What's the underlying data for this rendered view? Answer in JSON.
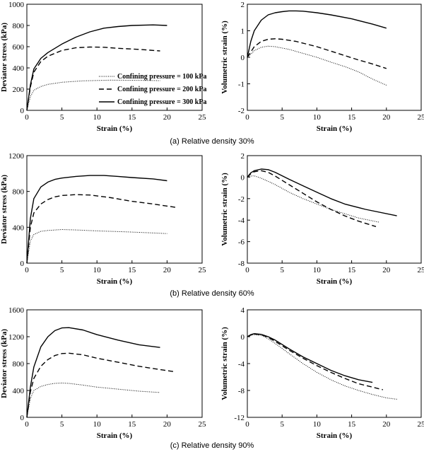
{
  "legend_labels": [
    "Confining pressure = 100 kPa",
    "Confining pressure = 200 kPa",
    "Confining pressure = 300 kPa"
  ],
  "captions": [
    "(a)  Relative density 30%",
    "(b)  Relative density 60%",
    "(c)  Relative density 90%"
  ],
  "chart_data": [
    {
      "type": "line",
      "panel": "a-left",
      "xlabel": "Strain (%)",
      "ylabel": "Deviator stress (kPa)",
      "xlim": [
        0,
        25
      ],
      "ylim": [
        0,
        1000
      ],
      "xticks": [
        0,
        5,
        10,
        15,
        20,
        25
      ],
      "yticks": [
        0,
        200,
        400,
        600,
        800,
        1000
      ],
      "series": [
        {
          "name": "Confining pressure = 100 kPa",
          "style": "dotted",
          "x": [
            0,
            0.5,
            1,
            2,
            3,
            5,
            8,
            12,
            16,
            19
          ],
          "y": [
            0,
            130,
            190,
            225,
            245,
            265,
            278,
            285,
            283,
            280
          ]
        },
        {
          "name": "Confining pressure = 200 kPa",
          "style": "dashed",
          "x": [
            0,
            0.5,
            1,
            2,
            3,
            5,
            7,
            9,
            11,
            13,
            16,
            19
          ],
          "y": [
            0,
            220,
            360,
            460,
            510,
            565,
            590,
            597,
            595,
            585,
            575,
            560
          ]
        },
        {
          "name": "Confining pressure = 300 kPa",
          "style": "solid",
          "x": [
            0,
            0.5,
            1,
            2,
            3,
            5,
            7,
            9,
            11,
            13,
            15,
            18,
            20
          ],
          "y": [
            0,
            240,
            390,
            490,
            545,
            625,
            690,
            740,
            775,
            790,
            800,
            805,
            800
          ]
        }
      ]
    },
    {
      "type": "line",
      "panel": "a-right",
      "xlabel": "Strain (%)",
      "ylabel": "Volumetric strain (%)",
      "xlim": [
        0,
        25
      ],
      "ylim": [
        -2,
        2
      ],
      "xticks": [
        0,
        5,
        10,
        15,
        20,
        25
      ],
      "yticks": [
        -2,
        -1,
        0,
        1,
        2
      ],
      "series": [
        {
          "name": "Confining pressure = 100 kPa",
          "style": "dotted",
          "x": [
            0,
            0.5,
            1,
            2,
            3,
            4,
            6,
            8,
            10,
            12,
            14,
            16,
            18,
            20
          ],
          "y": [
            0,
            0.12,
            0.25,
            0.38,
            0.42,
            0.4,
            0.3,
            0.15,
            0,
            -0.18,
            -0.35,
            -0.55,
            -0.82,
            -1.05
          ]
        },
        {
          "name": "Confining pressure = 200 kPa",
          "style": "dashed",
          "x": [
            0,
            0.5,
            1,
            2,
            3,
            4,
            5,
            7,
            10,
            13,
            16,
            18,
            20
          ],
          "y": [
            0,
            0.2,
            0.4,
            0.6,
            0.68,
            0.7,
            0.68,
            0.6,
            0.4,
            0.15,
            -0.1,
            -0.25,
            -0.42
          ]
        },
        {
          "name": "Confining pressure = 300 kPa",
          "style": "solid",
          "x": [
            0,
            0.5,
            1,
            2,
            3,
            4,
            5,
            6,
            7,
            8,
            10,
            12,
            15,
            18,
            20
          ],
          "y": [
            0,
            0.6,
            1.0,
            1.4,
            1.6,
            1.68,
            1.72,
            1.75,
            1.75,
            1.74,
            1.68,
            1.6,
            1.45,
            1.25,
            1.1
          ]
        }
      ]
    },
    {
      "type": "line",
      "panel": "b-left",
      "xlabel": "Strain (%)",
      "ylabel": "Deviator stress (kPa)",
      "xlim": [
        0,
        25
      ],
      "ylim": [
        0,
        1200
      ],
      "xticks": [
        0,
        5,
        10,
        15,
        20,
        25
      ],
      "yticks": [
        0,
        400,
        800,
        1200
      ],
      "series": [
        {
          "name": "Confining pressure = 100 kPa",
          "style": "dotted",
          "x": [
            0,
            0.5,
            1,
            2,
            3,
            5,
            7,
            10,
            14,
            17,
            20
          ],
          "y": [
            0,
            250,
            320,
            355,
            365,
            375,
            370,
            360,
            350,
            340,
            330
          ]
        },
        {
          "name": "Confining pressure = 200 kPa",
          "style": "dashed",
          "x": [
            0,
            0.5,
            1,
            2,
            3,
            4,
            5,
            7,
            9,
            12,
            15,
            18,
            21.5
          ],
          "y": [
            0,
            400,
            560,
            660,
            710,
            740,
            755,
            765,
            760,
            730,
            690,
            660,
            620
          ]
        },
        {
          "name": "Confining pressure = 300 kPa",
          "style": "solid",
          "x": [
            0,
            0.5,
            1,
            2,
            3,
            4,
            5,
            7,
            9,
            11,
            13,
            15,
            18,
            20
          ],
          "y": [
            0,
            500,
            720,
            850,
            905,
            935,
            950,
            968,
            978,
            978,
            968,
            955,
            940,
            920
          ]
        }
      ]
    },
    {
      "type": "line",
      "panel": "b-right",
      "xlabel": "Strain (%)",
      "ylabel": "Volumetric strain (%)",
      "xlim": [
        0,
        25
      ],
      "ylim": [
        -8,
        2
      ],
      "xticks": [
        0,
        5,
        10,
        15,
        20,
        25
      ],
      "yticks": [
        -8,
        -6,
        -4,
        -2,
        0,
        2
      ],
      "series": [
        {
          "name": "Confining pressure = 100 kPa",
          "style": "dotted",
          "x": [
            0,
            0.5,
            1,
            2,
            4,
            6,
            8,
            10,
            12,
            14,
            16,
            19
          ],
          "y": [
            0,
            0.1,
            0.12,
            -0.1,
            -0.7,
            -1.4,
            -2.0,
            -2.5,
            -3.0,
            -3.4,
            -3.8,
            -4.2
          ]
        },
        {
          "name": "Confining pressure = 200 kPa",
          "style": "dashed",
          "x": [
            0,
            0.5,
            1,
            2,
            3,
            4,
            6,
            8,
            10,
            12,
            14,
            16,
            18.5
          ],
          "y": [
            0,
            0.3,
            0.5,
            0.6,
            0.45,
            0.1,
            -0.7,
            -1.5,
            -2.3,
            -3.0,
            -3.6,
            -4.1,
            -4.6
          ]
        },
        {
          "name": "Confining pressure = 300 kPa",
          "style": "solid",
          "x": [
            0,
            0.5,
            1,
            2,
            3,
            4,
            6,
            8,
            10,
            12,
            14,
            17,
            21.5
          ],
          "y": [
            0,
            0.4,
            0.6,
            0.75,
            0.7,
            0.45,
            -0.2,
            -0.8,
            -1.4,
            -2.0,
            -2.5,
            -3.0,
            -3.6
          ]
        }
      ]
    },
    {
      "type": "line",
      "panel": "c-left",
      "xlabel": "Strain (%)",
      "ylabel": "Deviator stress (kPa)",
      "xlim": [
        0,
        25
      ],
      "ylim": [
        0,
        1600
      ],
      "xticks": [
        0,
        5,
        10,
        15,
        20,
        25
      ],
      "yticks": [
        0,
        400,
        800,
        1200,
        1600
      ],
      "series": [
        {
          "name": "Confining pressure = 100 kPa",
          "style": "dotted",
          "x": [
            0,
            0.5,
            1,
            2,
            3,
            4,
            5,
            6,
            8,
            10,
            13,
            16,
            19
          ],
          "y": [
            0,
            280,
            400,
            460,
            490,
            505,
            510,
            505,
            480,
            450,
            420,
            390,
            370
          ]
        },
        {
          "name": "Confining pressure = 200 kPa",
          "style": "dashed",
          "x": [
            0,
            0.5,
            1,
            2,
            3,
            4,
            5,
            6,
            8,
            10,
            13,
            16,
            19,
            21
          ],
          "y": [
            0,
            380,
            580,
            760,
            860,
            920,
            950,
            955,
            930,
            880,
            820,
            760,
            710,
            680
          ]
        },
        {
          "name": "Confining pressure = 300 kPa",
          "style": "solid",
          "x": [
            0,
            0.5,
            1,
            2,
            3,
            4,
            5,
            6,
            8,
            10,
            13,
            16,
            19
          ],
          "y": [
            0,
            450,
            750,
            1050,
            1200,
            1290,
            1330,
            1335,
            1300,
            1230,
            1150,
            1080,
            1040
          ]
        }
      ]
    },
    {
      "type": "line",
      "panel": "c-right",
      "xlabel": "Strain (%)",
      "ylabel": "Volumetric strain (%)",
      "xlim": [
        0,
        25
      ],
      "ylim": [
        -12,
        4
      ],
      "xticks": [
        0,
        5,
        10,
        15,
        20,
        25
      ],
      "yticks": [
        -12,
        -8,
        -4,
        0,
        4
      ],
      "series": [
        {
          "name": "Confining pressure = 100 kPa",
          "style": "dotted",
          "x": [
            0,
            0.5,
            1,
            2,
            3,
            4,
            6,
            8,
            10,
            12,
            14,
            16,
            18,
            20,
            21.5
          ],
          "y": [
            0,
            0.2,
            0.3,
            0.2,
            -0.3,
            -1.0,
            -2.5,
            -4.0,
            -5.3,
            -6.4,
            -7.3,
            -8.0,
            -8.6,
            -9.1,
            -9.3
          ]
        },
        {
          "name": "Confining pressure = 200 kPa",
          "style": "dashed",
          "x": [
            0,
            0.5,
            1,
            2,
            3,
            4,
            6,
            8,
            10,
            12,
            14,
            16,
            18,
            19.5
          ],
          "y": [
            0,
            0.25,
            0.4,
            0.3,
            -0.1,
            -0.7,
            -2.0,
            -3.2,
            -4.3,
            -5.3,
            -6.2,
            -7.0,
            -7.5,
            -7.9
          ]
        },
        {
          "name": "Confining pressure = 300 kPa",
          "style": "solid",
          "x": [
            0,
            0.5,
            1,
            2,
            3,
            4,
            6,
            8,
            10,
            12,
            14,
            16,
            18
          ],
          "y": [
            0,
            0.3,
            0.45,
            0.35,
            0,
            -0.5,
            -1.8,
            -3.0,
            -4.0,
            -5.0,
            -5.8,
            -6.4,
            -6.8
          ]
        }
      ]
    }
  ]
}
